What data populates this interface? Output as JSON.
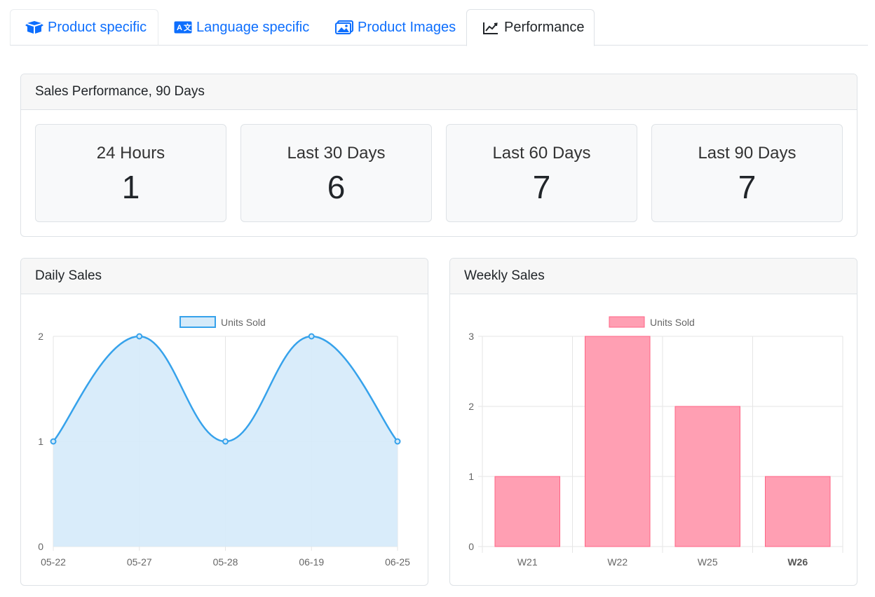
{
  "tabs": [
    {
      "label": "Product specific",
      "icon": "box-icon"
    },
    {
      "label": "Language specific",
      "icon": "translate-icon"
    },
    {
      "label": "Product Images",
      "icon": "images-icon"
    },
    {
      "label": "Performance",
      "icon": "chart-line-icon"
    }
  ],
  "colors": {
    "accent": "#0d6efd",
    "line": "#36a2eb",
    "lineFill": "#d5eaf9",
    "bar": "#ff9fb3",
    "barBorder": "#ff6384"
  },
  "summary": {
    "title": "Sales Performance, 90 Days",
    "stats": [
      {
        "label": "24 Hours",
        "value": "1"
      },
      {
        "label": "Last 30 Days",
        "value": "6"
      },
      {
        "label": "Last 60 Days",
        "value": "7"
      },
      {
        "label": "Last 90 Days",
        "value": "7"
      }
    ]
  },
  "daily": {
    "title": "Daily Sales"
  },
  "weekly": {
    "title": "Weekly Sales"
  },
  "chart_data": [
    {
      "type": "line",
      "title": "Daily Sales",
      "categories": [
        "05-22",
        "05-27",
        "05-28",
        "06-19",
        "06-25"
      ],
      "series": [
        {
          "name": "Units Sold",
          "values": [
            1,
            2,
            1,
            2,
            1
          ]
        }
      ],
      "ylim": [
        0,
        2
      ],
      "yticks": [
        0,
        1,
        2
      ],
      "grid": true,
      "fill": true,
      "legend": "top"
    },
    {
      "type": "bar",
      "title": "Weekly Sales",
      "categories": [
        "W21",
        "W22",
        "W25",
        "W26"
      ],
      "series": [
        {
          "name": "Units Sold",
          "values": [
            1,
            3,
            2,
            1
          ]
        }
      ],
      "ylim": [
        0,
        3
      ],
      "yticks": [
        0,
        1,
        2,
        3
      ],
      "grid": true,
      "legend": "top"
    }
  ]
}
